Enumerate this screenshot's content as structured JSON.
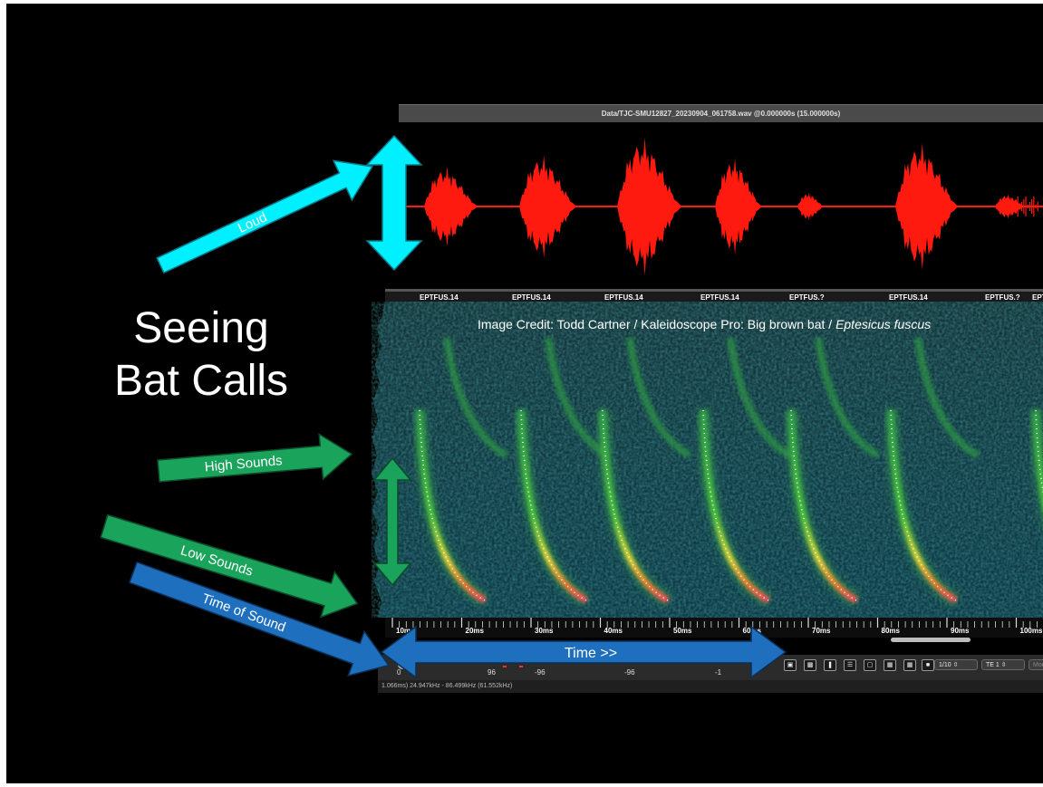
{
  "slide": {
    "title_line1": "Seeing",
    "title_line2": "Bat Calls",
    "credit_prefix": "Image Credit: Todd Cartner / Kaleidoscope Pro: Big brown bat / ",
    "credit_species": "Eptesicus fuscus"
  },
  "arrows": {
    "loud": "Loud",
    "high": "High Sounds",
    "low": "Low Sounds",
    "time_of_sound": "Time of Sound",
    "time_forward": "Time >>"
  },
  "window": {
    "title": "Data/TJC-SMU12827_20230904_061758.wav @0.000000s (15.000000s)"
  },
  "call_labels": [
    "EPTFUS.14",
    "EPTFUS.14",
    "EPTFUS.14",
    "EPTFUS.14",
    "EPTFUS.?",
    "EPTFUS.14",
    "EPTFUS.?",
    "EPT"
  ],
  "time_ticks": [
    "10ms",
    "20ms",
    "30ms",
    "40ms",
    "50ms",
    "60ms",
    "70ms",
    "80ms",
    "90ms",
    "100ms"
  ],
  "controls": {
    "values": [
      "0",
      "96",
      "-96",
      "-96",
      "-1"
    ],
    "select_ratio": "1/10",
    "select_te": "TE 1",
    "mode_partial": "Mon"
  },
  "status_bar": "1.066ms) 24.947kHz - 86.499kHz (61.552kHz)",
  "colors": {
    "waveform": "#ff1a10",
    "loud_arrow": "#00f0ff",
    "green_arrow": "#1aa35a",
    "blue_arrow": "#1f6fbf"
  }
}
